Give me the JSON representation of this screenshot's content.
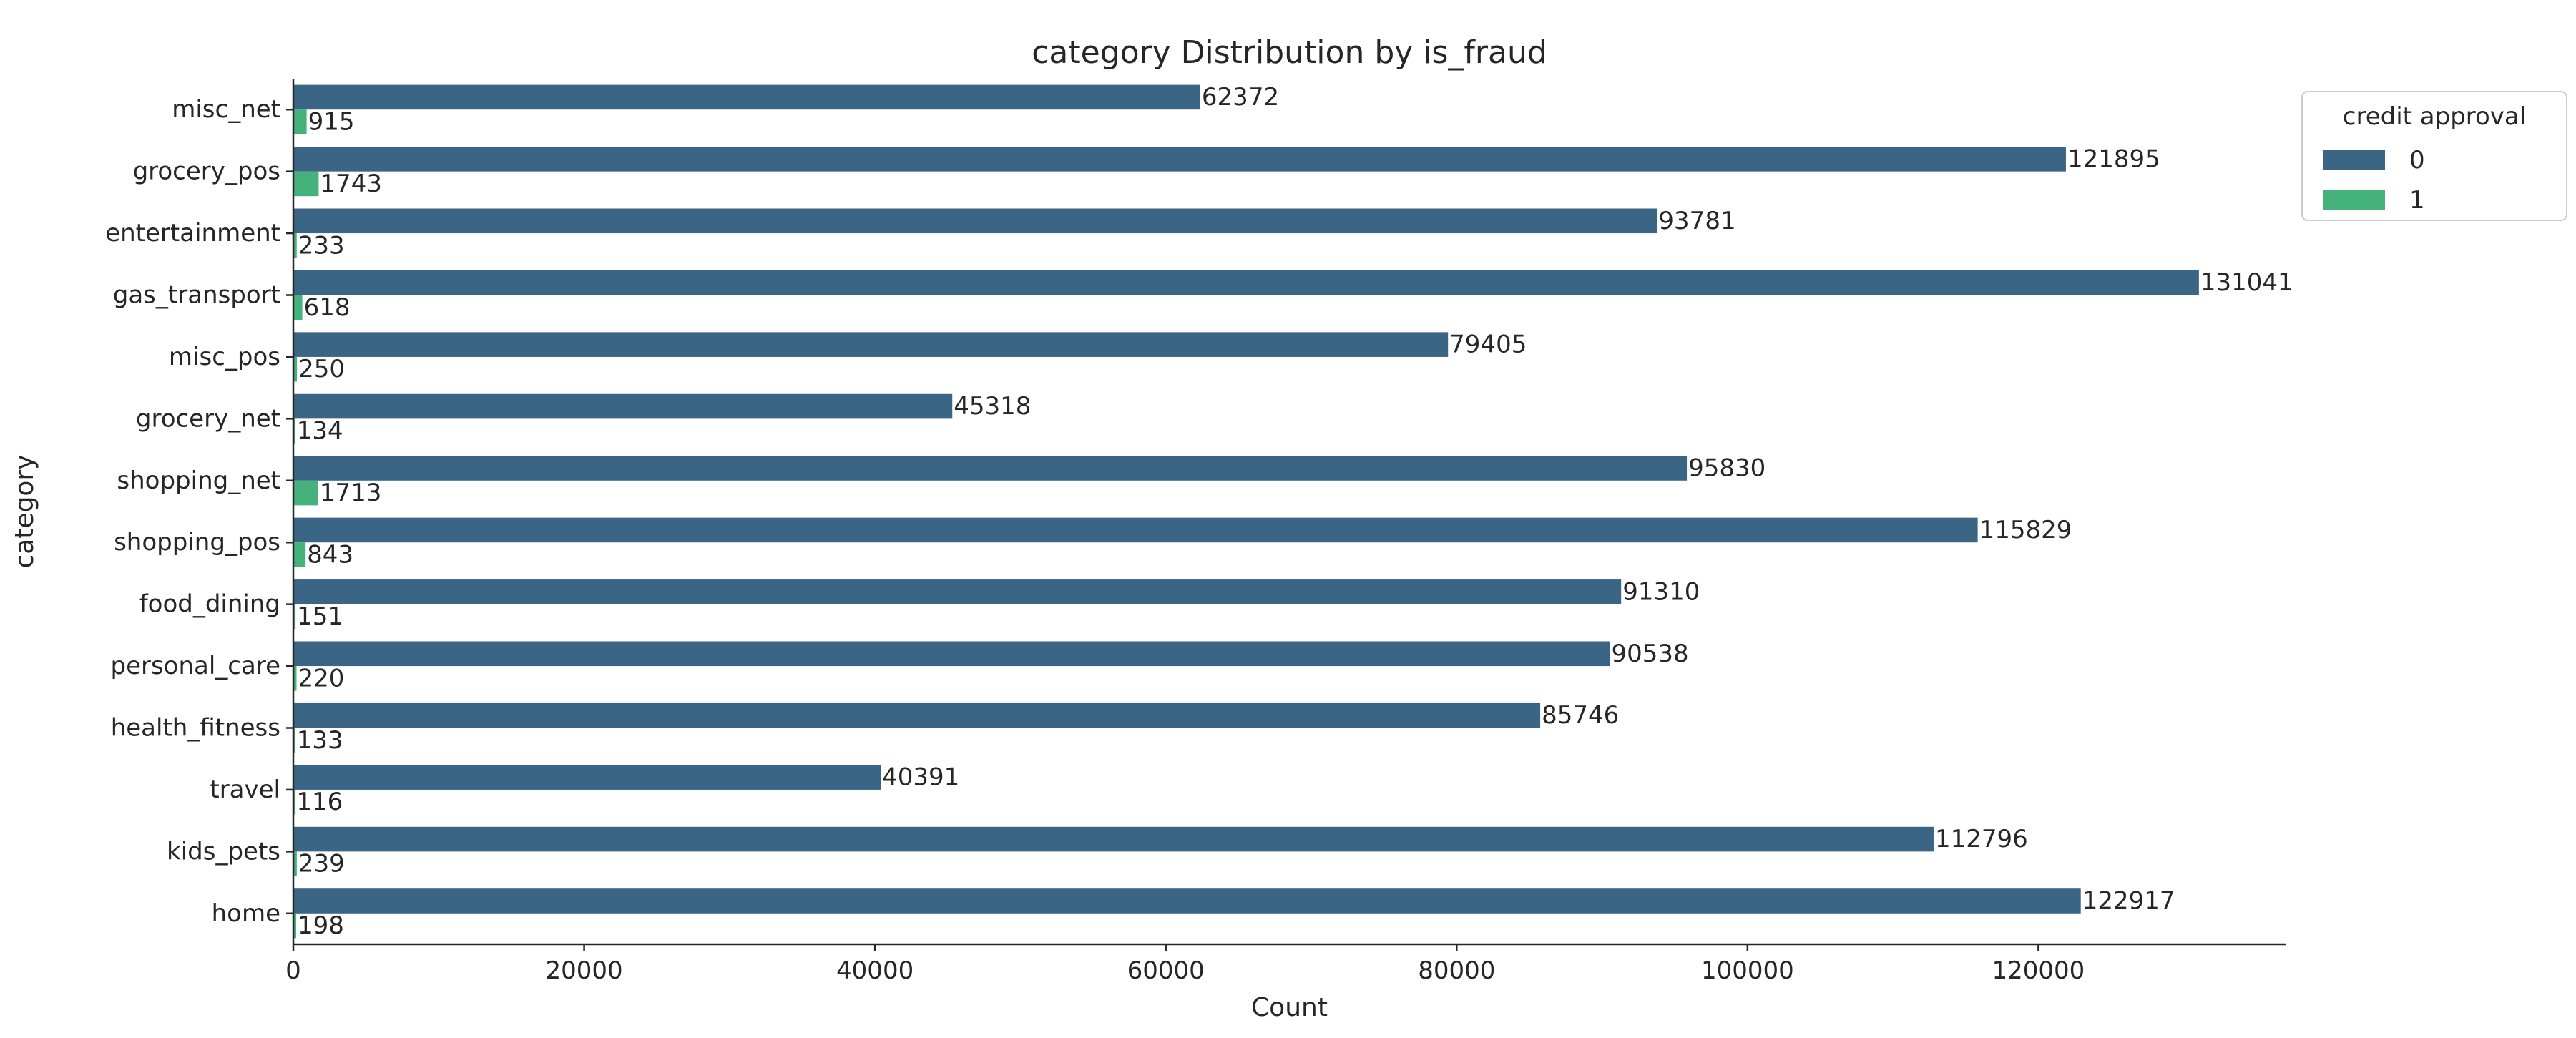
{
  "chart_data": {
    "type": "bar",
    "orientation": "horizontal",
    "title": "category Distribution by is_fraud",
    "xlabel": "Count",
    "ylabel": "category",
    "xlim": [
      0,
      137000
    ],
    "xticks": [
      0,
      20000,
      40000,
      60000,
      80000,
      100000,
      120000
    ],
    "categories": [
      "misc_net",
      "grocery_pos",
      "entertainment",
      "gas_transport",
      "misc_pos",
      "grocery_net",
      "shopping_net",
      "shopping_pos",
      "food_dining",
      "personal_care",
      "health_fitness",
      "travel",
      "kids_pets",
      "home"
    ],
    "series": [
      {
        "name": "0",
        "color": "#3b6584",
        "values": [
          62372,
          121895,
          93781,
          131041,
          79405,
          45318,
          95830,
          115829,
          91310,
          90538,
          85746,
          40391,
          112796,
          122917
        ]
      },
      {
        "name": "1",
        "color": "#44b27a",
        "values": [
          915,
          1743,
          233,
          618,
          250,
          134,
          1713,
          843,
          151,
          220,
          133,
          116,
          239,
          198
        ]
      }
    ],
    "legend": {
      "title": "credit approval",
      "position": "top-right-outside"
    },
    "grid": false
  }
}
